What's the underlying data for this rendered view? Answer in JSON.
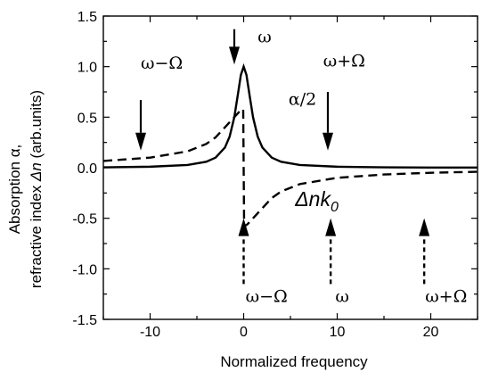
{
  "chart_data": {
    "type": "line",
    "title": "",
    "xlabel": "Normalized frequency",
    "ylabel_line1": "Absorption α,",
    "ylabel_line2_prefix": "refractive index ",
    "ylabel_line2_symbol": "Δn",
    "ylabel_line2_suffix": " (arb.units)",
    "xlim": [
      -15,
      25
    ],
    "ylim": [
      -1.5,
      1.5
    ],
    "x_ticks": [
      -10,
      0,
      10,
      20
    ],
    "x_tick_labels": [
      "-10",
      "0",
      "10",
      "20"
    ],
    "y_ticks": [
      -1.5,
      -1.0,
      -0.5,
      0.0,
      0.5,
      1.0,
      1.5
    ],
    "y_tick_labels": [
      "-1.5",
      "-1.0",
      "-0.5",
      "0.0",
      "0.5",
      "1.0",
      "1.5"
    ],
    "grid": false,
    "series": [
      {
        "name": "α/2",
        "style": "solid",
        "color": "#000000",
        "x": [
          -15,
          -10,
          -6,
          -4,
          -3,
          -2,
          -1.5,
          -1,
          -0.6,
          -0.3,
          0,
          0.3,
          0.6,
          1,
          1.5,
          2,
          3,
          4,
          6,
          10,
          15,
          20,
          25
        ],
        "y": [
          0.004,
          0.01,
          0.027,
          0.059,
          0.1,
          0.2,
          0.308,
          0.5,
          0.735,
          0.917,
          1.0,
          0.917,
          0.735,
          0.5,
          0.308,
          0.2,
          0.1,
          0.059,
          0.027,
          0.01,
          0.004,
          0.002,
          0.002
        ]
      },
      {
        "name": "Δnk0",
        "style": "dashed",
        "color": "#000000",
        "x": [
          -15,
          -10,
          -6,
          -4,
          -3,
          -2,
          -1,
          -0.4,
          -0.05,
          0.05,
          0.4,
          1,
          2,
          3,
          4,
          6,
          10,
          15,
          20,
          25
        ],
        "y": [
          0.067,
          0.1,
          0.162,
          0.235,
          0.3,
          0.4,
          0.5,
          0.56,
          0.58,
          -0.58,
          -0.56,
          -0.5,
          -0.4,
          -0.3,
          -0.235,
          -0.162,
          -0.1,
          -0.067,
          -0.05,
          -0.04
        ]
      }
    ],
    "annotations": [
      {
        "text": "ω",
        "x": 1.5,
        "y": 1.24,
        "style": "serif"
      },
      {
        "text": "ω−Ω",
        "x": -11,
        "y": 0.98,
        "style": "serif"
      },
      {
        "text": "ω+Ω",
        "x": 8.5,
        "y": 1.0,
        "style": "serif"
      },
      {
        "text": "α/2",
        "x": 4.8,
        "y": 0.62,
        "style": "serif"
      },
      {
        "text": "ω−Ω",
        "x": 0.2,
        "y": -1.33,
        "style": "serif"
      },
      {
        "text": "ω",
        "x": 9.8,
        "y": -1.33,
        "style": "serif"
      },
      {
        "text": "ω+Ω",
        "x": 19.4,
        "y": -1.33,
        "style": "serif"
      }
    ],
    "delta_label": {
      "symbol": "Δnk",
      "subscript": "0",
      "x": 5.5,
      "y": -0.38
    },
    "arrows": [
      {
        "x": -1,
        "from_y": 1.37,
        "to_y": 1.02,
        "style": "solid"
      },
      {
        "x": -11,
        "from_y": 0.67,
        "to_y": 0.17,
        "style": "solid"
      },
      {
        "x": 9,
        "from_y": 0.75,
        "to_y": 0.17,
        "style": "solid"
      },
      {
        "x": 0,
        "from_y": -1.15,
        "to_y": -0.5,
        "style": "dashed"
      },
      {
        "x": 9.3,
        "from_y": -1.15,
        "to_y": -0.5,
        "style": "dashed"
      },
      {
        "x": 19.3,
        "from_y": -1.15,
        "to_y": -0.5,
        "style": "dashed"
      }
    ]
  }
}
